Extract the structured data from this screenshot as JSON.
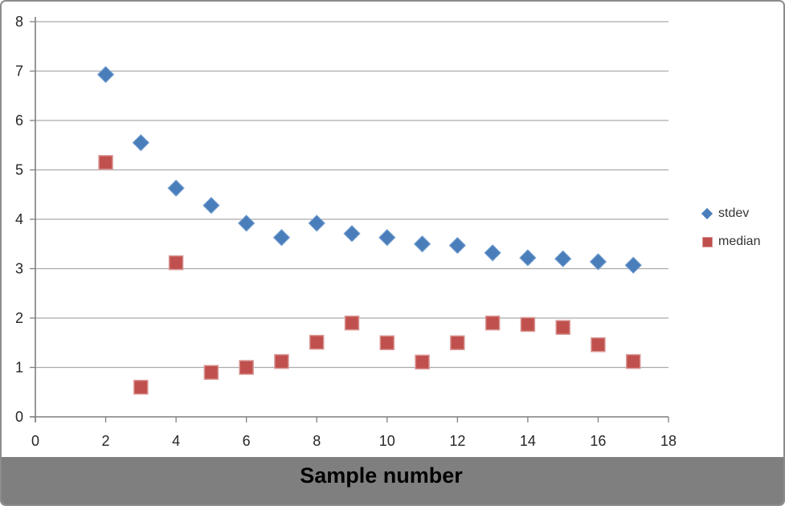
{
  "chart_data": {
    "type": "scatter",
    "title": "Sample number",
    "title_position": "bottom",
    "xlabel": "Sample number",
    "ylabel": "",
    "xlim": [
      0,
      18
    ],
    "ylim": [
      0,
      8
    ],
    "x_ticks": [
      0,
      2,
      4,
      6,
      8,
      10,
      12,
      14,
      16,
      18
    ],
    "y_ticks": [
      0,
      1,
      2,
      3,
      4,
      5,
      6,
      7,
      8
    ],
    "grid": "horizontal-only",
    "legend_position": "right",
    "x": [
      2,
      3,
      4,
      5,
      6,
      7,
      8,
      9,
      10,
      11,
      12,
      13,
      14,
      15,
      16,
      17
    ],
    "series": [
      {
        "name": "stdev",
        "marker": "diamond",
        "color": "#4A7EBB",
        "values": [
          6.93,
          5.55,
          4.63,
          4.28,
          3.92,
          3.63,
          3.92,
          3.71,
          3.63,
          3.5,
          3.47,
          3.32,
          3.22,
          3.2,
          3.14,
          3.07
        ]
      },
      {
        "name": "median",
        "marker": "square",
        "color": "#C0504D",
        "values": [
          5.15,
          0.6,
          3.12,
          0.9,
          1.0,
          1.12,
          1.51,
          1.9,
          1.5,
          1.11,
          1.5,
          1.9,
          1.87,
          1.81,
          1.46,
          1.12
        ]
      }
    ]
  },
  "footer": {
    "title": "Sample number"
  },
  "colors": {
    "stdev_fill": "#4A7EBB",
    "median_fill": "#C0504D",
    "median_border": "#D99694",
    "gridline": "#ABABAB",
    "axis": "#7F7F7F",
    "footer_band": "#7F7F7F",
    "tick_label": "#262626",
    "frame_border": "#8C8C8C"
  }
}
